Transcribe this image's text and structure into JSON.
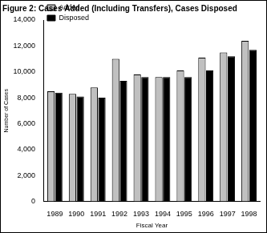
{
  "chart_data": {
    "type": "bar",
    "title": "Figure 2: Cases Added (Including Transfers), Cases Disposed",
    "x_label": "Fiscal Year",
    "y_label": "Number of Cases",
    "categories": [
      "1989",
      "1990",
      "1991",
      "1992",
      "1993",
      "1994",
      "1995",
      "1996",
      "1997",
      "1998"
    ],
    "series": [
      {
        "name": "Added",
        "color": "#c0c0c0",
        "values": [
          8500,
          8300,
          8800,
          11000,
          9800,
          9600,
          10100,
          11100,
          11500,
          12400
        ]
      },
      {
        "name": "Disposed",
        "color": "#000000",
        "values": [
          8400,
          8100,
          8000,
          9300,
          9600,
          9600,
          9600,
          10100,
          11200,
          11700
        ]
      }
    ],
    "ylim": [
      0,
      14000
    ],
    "yticks": [
      0,
      {
        "value": 2000,
        "label": "2,000"
      },
      {
        "value": 4000,
        "label": "4,000"
      },
      {
        "value": 6000,
        "label": "6,000"
      },
      {
        "value": 8000,
        "label": "8,000"
      },
      {
        "value": 10000,
        "label": "10,000"
      },
      {
        "value": 12000,
        "label": "12,000"
      },
      {
        "value": 14000,
        "label": "14,000"
      }
    ],
    "grid": false,
    "legend": "upper left"
  }
}
